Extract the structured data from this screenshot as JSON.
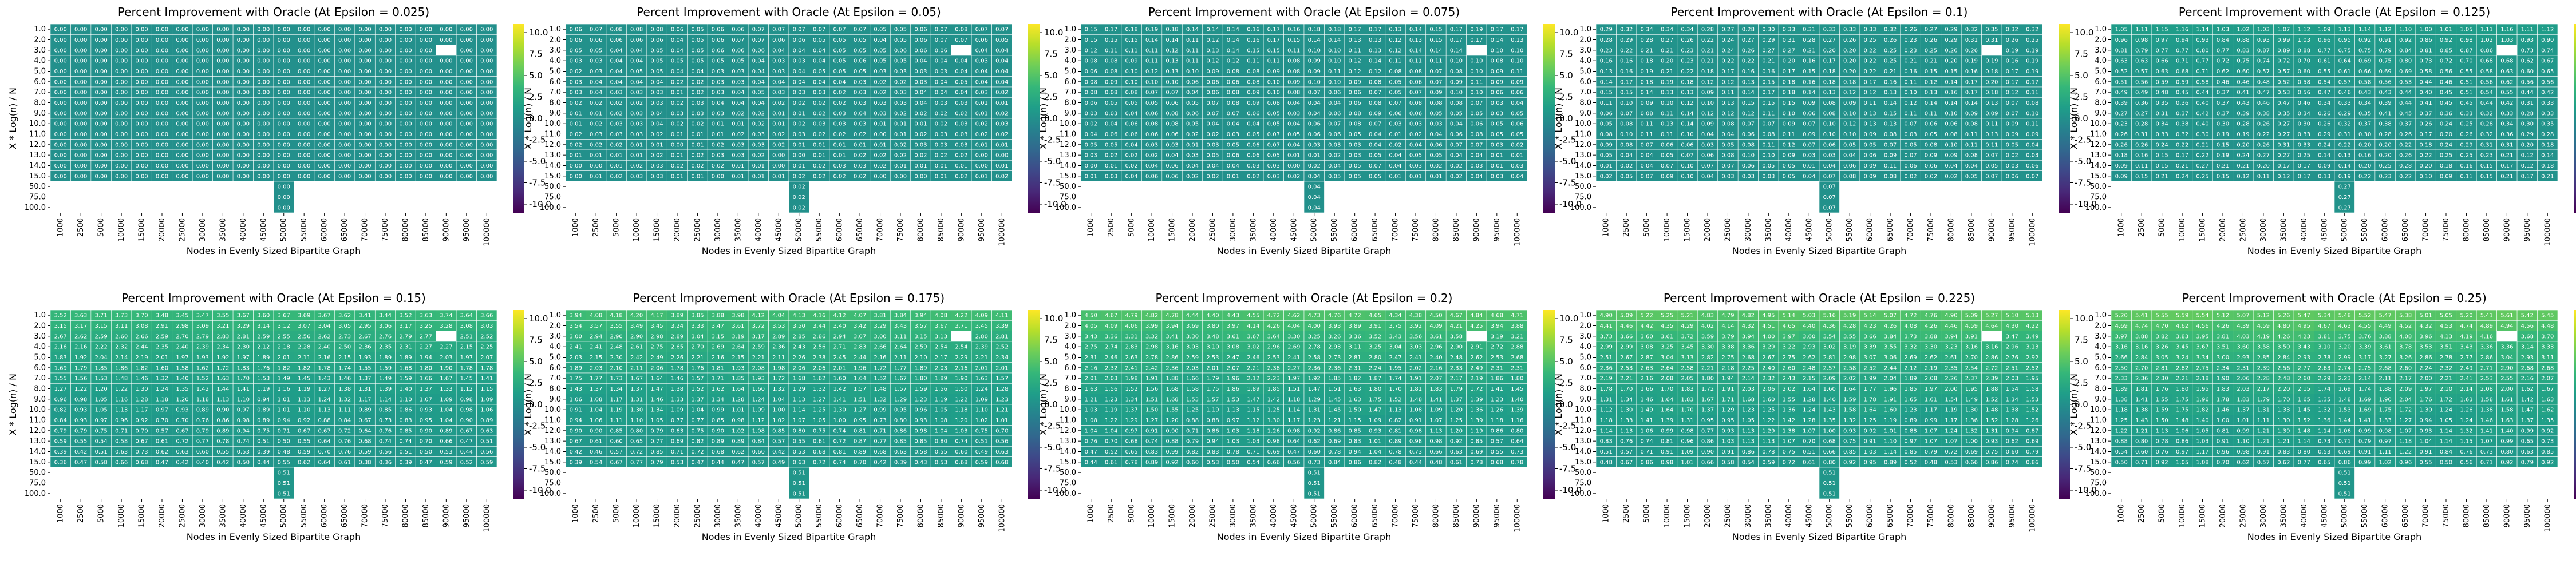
{
  "chart_data": [
    {
      "type": "heatmap",
      "title": "Percent Improvement with Oracle (At Epsilon = 0.025)",
      "xlabel": "Nodes in Evenly Sized Bipartite Graph",
      "ylabel": "X * Log(n) / N",
      "profile": "zero",
      "hi": 0.0,
      "grad": 0.0
    },
    {
      "type": "heatmap",
      "title": "Percent Improvement with Oracle (At Epsilon = 0.05)",
      "xlabel": "Nodes in Evenly Sized Bipartite Graph",
      "ylabel": "X * Log(n) / N",
      "profile": "small",
      "hi": 0.06,
      "grad": 0.01
    },
    {
      "type": "heatmap",
      "title": "Percent Improvement with Oracle (At Epsilon = 0.075)",
      "xlabel": "Nodes in Evenly Sized Bipartite Graph",
      "ylabel": "X * Log(n) / N",
      "profile": "small",
      "hi": 0.15,
      "grad": 0.02
    },
    {
      "type": "heatmap",
      "title": "Percent Improvement with Oracle (At Epsilon = 0.1)",
      "xlabel": "Nodes in Evenly Sized Bipartite Graph",
      "ylabel": "X * Log(n) / N",
      "profile": "small",
      "hi": 0.29,
      "grad": 0.03
    },
    {
      "type": "heatmap",
      "title": "Percent Improvement with Oracle (At Epsilon = 0.125)",
      "xlabel": "Nodes in Evenly Sized Bipartite Graph",
      "ylabel": "X * Log(n) / N",
      "profile": "mid",
      "hi": 1.05,
      "grad": 0.06
    },
    {
      "type": "heatmap",
      "title": "Percent Improvement with Oracle (At Epsilon = 0.15)",
      "xlabel": "Nodes in Evenly Sized Bipartite Graph",
      "ylabel": "X * Log(n) / N",
      "profile": "mid",
      "hi": 3.52,
      "grad": 0.12
    },
    {
      "type": "heatmap",
      "title": "Percent Improvement with Oracle (At Epsilon = 0.175)",
      "xlabel": "Nodes in Evenly Sized Bipartite Graph",
      "ylabel": "X * Log(n) / N",
      "profile": "big",
      "hi": 3.94,
      "grad": 0.15
    },
    {
      "type": "heatmap",
      "title": "Percent Improvement with Oracle (At Epsilon = 0.2)",
      "xlabel": "Nodes in Evenly Sized Bipartite Graph",
      "ylabel": "X * Log(n) / N",
      "profile": "big",
      "hi": 4.5,
      "grad": 0.18
    },
    {
      "type": "heatmap",
      "title": "Percent Improvement with Oracle (At Epsilon = 0.225)",
      "xlabel": "Nodes in Evenly Sized Bipartite Graph",
      "ylabel": "X * Log(n) / N",
      "profile": "big",
      "hi": 4.9,
      "grad": 0.2
    },
    {
      "type": "heatmap",
      "title": "Percent Improvement with Oracle (At Epsilon = 0.25)",
      "xlabel": "Nodes in Evenly Sized Bipartite Graph",
      "ylabel": "X * Log(n) / N",
      "profile": "big",
      "hi": 5.2,
      "grad": 0.22
    }
  ],
  "shared": {
    "rows": [
      "1.0",
      "2.0",
      "3.0",
      "4.0",
      "5.0",
      "6.0",
      "7.0",
      "8.0",
      "9.0",
      "10.0",
      "11.0",
      "12.0",
      "13.0",
      "14.0",
      "15.0",
      "50.0",
      "75.0",
      "100.0"
    ],
    "cols": [
      "1000",
      "2500",
      "5000",
      "10000",
      "15000",
      "20000",
      "25000",
      "30000",
      "35000",
      "40000",
      "45000",
      "50000",
      "55000",
      "60000",
      "65000",
      "70000",
      "75000",
      "80000",
      "85000",
      "90000",
      "95000",
      "100000"
    ],
    "colorbar": {
      "min": -11,
      "max": 11,
      "ticks": [
        10.0,
        7.5,
        5.0,
        2.5,
        0.0,
        -2.5,
        -5.0,
        -7.5,
        -10.0
      ],
      "colormap": [
        "#440154",
        "#482878",
        "#3e4989",
        "#31688e",
        "#26828e",
        "#1f9e89",
        "#35b779",
        "#6ece58",
        "#b5de2b",
        "#fde725"
      ]
    }
  }
}
